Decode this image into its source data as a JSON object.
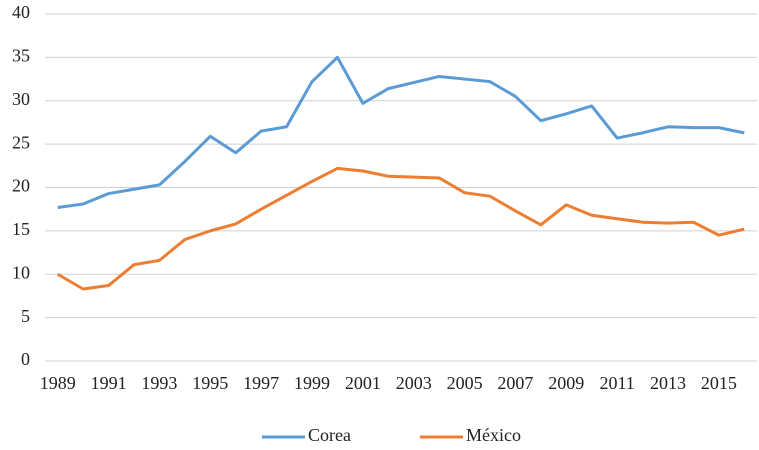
{
  "chart_data": {
    "type": "line",
    "x": [
      1989,
      1990,
      1991,
      1992,
      1993,
      1994,
      1995,
      1996,
      1997,
      1998,
      1999,
      2000,
      2001,
      2002,
      2003,
      2004,
      2005,
      2006,
      2007,
      2008,
      2009,
      2010,
      2011,
      2012,
      2013,
      2014,
      2015,
      2016
    ],
    "series": [
      {
        "name": "Corea",
        "color": "#5b9bd5",
        "values": [
          17.7,
          18.1,
          19.3,
          19.8,
          20.3,
          23.0,
          25.9,
          24.0,
          26.5,
          27.0,
          32.2,
          35.0,
          29.7,
          31.4,
          32.1,
          32.8,
          32.5,
          32.2,
          30.5,
          27.7,
          28.5,
          29.4,
          25.7,
          26.3,
          27.0,
          26.9,
          26.9,
          26.3
        ]
      },
      {
        "name": "México",
        "color": "#ed7d31",
        "values": [
          10.0,
          8.3,
          8.7,
          11.1,
          11.6,
          14.0,
          15.0,
          15.8,
          17.5,
          19.1,
          20.7,
          22.2,
          21.9,
          21.3,
          21.2,
          21.1,
          19.4,
          19.0,
          17.3,
          15.7,
          18.0,
          16.8,
          16.4,
          16.0,
          15.9,
          16.0,
          14.5,
          15.2
        ]
      }
    ],
    "xlim": [
      1989,
      2016
    ],
    "xticks": [
      1989,
      1991,
      1993,
      1995,
      1997,
      1999,
      2001,
      2003,
      2005,
      2007,
      2009,
      2011,
      2013,
      2015
    ],
    "ylim": [
      0,
      40
    ],
    "yticks": [
      0,
      5,
      10,
      15,
      20,
      25,
      30,
      35,
      40
    ],
    "grid": true,
    "legend": "bottom"
  }
}
